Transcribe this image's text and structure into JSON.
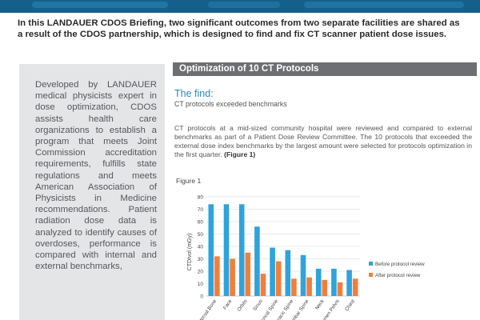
{
  "colors": {
    "banner": "#15608a",
    "accent_blue": "#2e86c1",
    "before_series": "#2ea3dc",
    "after_series": "#f07f3c",
    "sidebar_bg": "#e4e5e7",
    "header_bg": "#6d6f72"
  },
  "intro": {
    "text": "In this LANDAUER CDOS Briefing, two significant outcomes from two separate facilities are shared as a result of the CDOS partnership, which is designed to find and fix CT scanner patient dose issues."
  },
  "sidebar": {
    "text": "Developed by LANDAUER medical physicists expert in dose optimization, CDOS assists health care organizations to establish a program that meets Joint Commission accreditation requirements, fulfills state regulations and meets American Association of Physicists in Medicine recommendations. Patient radiation dose data is analyzed to identify causes of overdoses, performance is compared with internal and external benchmarks,"
  },
  "section": {
    "title": "Optimization of 10 CT Protocols",
    "find_heading": "The find:",
    "find_sub": "CT protocols exceeded benchmarks",
    "body": "CT protocols at a mid-sized community hospital were reviewed and compared to external benchmarks as part of a Patient Dose Review Committee. The 10 protocols that exceeded the external dose index benchmarks by the largest amount were selected for protocols optimization in the first quarter.",
    "body_ref": "(Figure 1)",
    "figure_label": "Figure 1"
  },
  "chart_data": {
    "type": "bar",
    "ylabel": "CTDIvol (mGy)",
    "ylim": [
      0,
      80
    ],
    "yticks": [
      0,
      10,
      20,
      30,
      40,
      50,
      60,
      70,
      80
    ],
    "categories": [
      "Internal Bone",
      "Face",
      "Orbits",
      "Sinus",
      "Cervical Spine",
      "Thoracic Spine",
      "Lumbar Spine",
      "Neck",
      "Abdomen Pelvis",
      "Chest"
    ],
    "series": [
      {
        "name": "Before protocol review",
        "values": [
          74,
          74,
          74,
          56,
          39,
          37,
          33,
          22,
          22,
          21
        ]
      },
      {
        "name": "After protocol review",
        "values": [
          32,
          30,
          35,
          18,
          28,
          14,
          15,
          13,
          11,
          14
        ]
      }
    ],
    "legend_position": "right",
    "grid": true
  }
}
